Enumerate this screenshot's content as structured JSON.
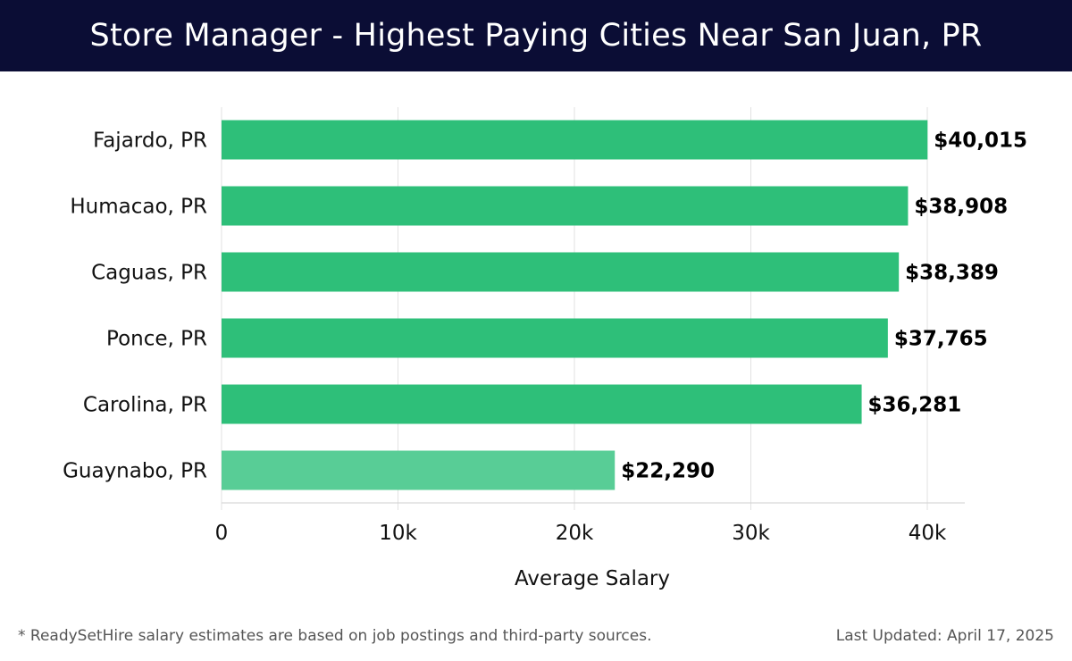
{
  "header": {
    "title": "Store Manager - Highest Paying Cities Near San Juan, PR"
  },
  "chart_data": {
    "type": "bar",
    "orientation": "horizontal",
    "title": "Store Manager - Highest Paying Cities Near San Juan, PR",
    "xlabel": "Average Salary",
    "ylabel": "",
    "xlim": [
      0,
      42000
    ],
    "x_ticks": [
      0,
      10000,
      20000,
      30000,
      40000
    ],
    "x_tick_labels": [
      "0",
      "10k",
      "20k",
      "30k",
      "40k"
    ],
    "grid": "vertical",
    "categories": [
      "Fajardo, PR",
      "Humacao, PR",
      "Caguas, PR",
      "Ponce, PR",
      "Carolina, PR",
      "Guaynabo, PR"
    ],
    "values": [
      40015,
      38908,
      38389,
      37765,
      36281,
      22290
    ],
    "value_labels": [
      "$40,015",
      "$38,908",
      "$38,389",
      "$37,765",
      "$36,281",
      "$22,290"
    ],
    "bar_colors": [
      "#2ebf79",
      "#2ebf79",
      "#2ebf79",
      "#2ebf79",
      "#2ebf79",
      "#58cd96"
    ]
  },
  "footer": {
    "note": "* ReadySetHire salary estimates are based on job postings and third-party sources.",
    "updated": "Last Updated: April 17, 2025"
  }
}
